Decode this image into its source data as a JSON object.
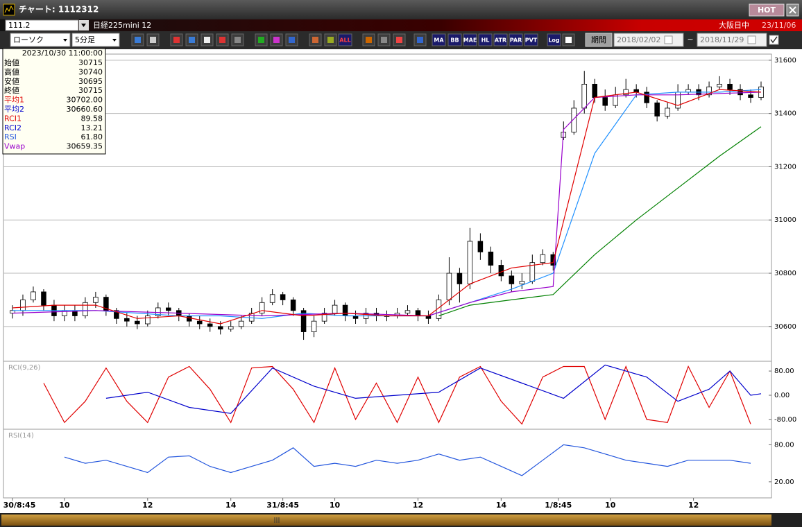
{
  "window": {
    "title": "チャート: 1112312",
    "hot": "HOT",
    "symbol_code": "111.2",
    "symbol_name": "日経225mini 12",
    "session": "大阪日中",
    "date": "23/11/06"
  },
  "toolbar": {
    "chart_type": "ローソク",
    "interval": "5分足",
    "icon_labels": [
      "ALL",
      "MA",
      "BB",
      "MAE",
      "HL",
      "ATR",
      "PAR",
      "PVT",
      "Log"
    ],
    "period_button": "期間",
    "date_from": "2018/02/02",
    "tilde": "~",
    "date_to": "2018/11/29"
  },
  "info_box": {
    "datetime": "2023/10/30 11:00:00",
    "rows": [
      {
        "label": "始値",
        "value": "30715",
        "color": "#000000"
      },
      {
        "label": "高値",
        "value": "30740",
        "color": "#000000"
      },
      {
        "label": "安値",
        "value": "30695",
        "color": "#000000"
      },
      {
        "label": "終値",
        "value": "30715",
        "color": "#000000"
      },
      {
        "label": "平均1",
        "value": "30702.00",
        "color": "#e00000"
      },
      {
        "label": "平均2",
        "value": "30660.60",
        "color": "#0000cc"
      },
      {
        "label": "RCI1",
        "value": "89.58",
        "color": "#e00000"
      },
      {
        "label": "RCI2",
        "value": "13.21",
        "color": "#0000cc"
      },
      {
        "label": "RSI",
        "value": "61.80",
        "color": "#2255dd"
      },
      {
        "label": "Vwap",
        "value": "30659.35",
        "color": "#9900cc"
      }
    ]
  },
  "chart_data": [
    {
      "type": "candlestick",
      "up_color": "#ffffff",
      "down_color": "#000000",
      "wick_color": "#000000",
      "xlim": [
        -0.6,
        73
      ],
      "ylim": [
        30472,
        31623
      ],
      "yticks": [
        30600,
        30800,
        31000,
        31200,
        31400,
        31600
      ],
      "grid": true,
      "open": [
        30650,
        30660,
        30700,
        30730,
        30680,
        30640,
        30660,
        30640,
        30690,
        30710,
        30660,
        30630,
        30620,
        30610,
        30640,
        30670,
        30660,
        30640,
        30620,
        30610,
        30600,
        30590,
        30600,
        30620,
        30650,
        30690,
        30720,
        30700,
        30660,
        30580,
        30620,
        30650,
        30680,
        30640,
        30630,
        30650,
        30640,
        30640,
        30650,
        30660,
        30640,
        30630,
        30700,
        30800,
        30760,
        30920,
        30880,
        30830,
        30790,
        30760,
        30770,
        30840,
        30870,
        31310,
        31330,
        31420,
        31510,
        31460,
        31430,
        31470,
        31490,
        31480,
        31440,
        31390,
        31420,
        31480,
        31490,
        31470,
        31500,
        31510,
        31490,
        31470,
        31460
      ],
      "high": [
        30680,
        30720,
        30750,
        30740,
        30700,
        30680,
        30680,
        30710,
        30730,
        30720,
        30670,
        30650,
        30640,
        30660,
        30690,
        30690,
        30670,
        30650,
        30640,
        30630,
        30620,
        30620,
        30640,
        30670,
        30710,
        30740,
        30730,
        30710,
        30670,
        30640,
        30670,
        30700,
        30690,
        30660,
        30670,
        30670,
        30660,
        30670,
        30680,
        30670,
        30660,
        30720,
        30860,
        30820,
        30970,
        30950,
        30900,
        30850,
        30810,
        30800,
        30870,
        30890,
        30880,
        31370,
        31450,
        31560,
        31530,
        31490,
        31500,
        31530,
        31510,
        31500,
        31450,
        31440,
        31510,
        31510,
        31510,
        31520,
        31540,
        31530,
        31510,
        31490,
        31520
      ],
      "low": [
        30630,
        30640,
        30690,
        30660,
        30620,
        30620,
        30620,
        30630,
        30670,
        30640,
        30610,
        30600,
        30590,
        30600,
        30630,
        30640,
        30620,
        30600,
        30590,
        30580,
        30570,
        30580,
        30590,
        30610,
        30640,
        30680,
        30680,
        30640,
        30550,
        30560,
        30610,
        30640,
        30620,
        30610,
        30610,
        30620,
        30620,
        30630,
        30640,
        30620,
        30610,
        30620,
        30680,
        30690,
        30740,
        30850,
        30800,
        30770,
        30730,
        30740,
        30760,
        30830,
        30810,
        31300,
        31320,
        31400,
        31440,
        31410,
        31420,
        31460,
        31460,
        31420,
        31370,
        31380,
        31410,
        31470,
        31450,
        31460,
        31490,
        31470,
        31450,
        31440,
        31450
      ],
      "close": [
        30660,
        30700,
        30730,
        30680,
        30640,
        30660,
        30640,
        30690,
        30710,
        30660,
        30630,
        30620,
        30610,
        30640,
        30670,
        30660,
        30640,
        30620,
        30610,
        30600,
        30590,
        30600,
        30620,
        30650,
        30690,
        30720,
        30700,
        30660,
        30580,
        30620,
        30650,
        30680,
        30640,
        30630,
        30650,
        30640,
        30640,
        30650,
        30660,
        30640,
        30630,
        30700,
        30800,
        30760,
        30920,
        30880,
        30830,
        30790,
        30760,
        30770,
        30840,
        30870,
        30830,
        31330,
        31420,
        31510,
        31460,
        31430,
        31470,
        31490,
        31480,
        31440,
        31390,
        31420,
        31480,
        31490,
        31470,
        31500,
        31510,
        31490,
        31470,
        31460,
        31500
      ],
      "series": [
        {
          "color": "#008000",
          "x": [
            41,
            44,
            48,
            52,
            56,
            60,
            64,
            68,
            72
          ],
          "values": [
            30640,
            30680,
            30700,
            30720,
            30870,
            31000,
            31120,
            31240,
            31350
          ]
        },
        {
          "color": "#1e90ff",
          "x": [
            0,
            4,
            8,
            12,
            16,
            20,
            24,
            28,
            32,
            36,
            40,
            44,
            48,
            52,
            56,
            60,
            64,
            68,
            72
          ],
          "values": [
            30660,
            30660,
            30660,
            30650,
            30640,
            30640,
            30630,
            30650,
            30640,
            30640,
            30640,
            30690,
            30740,
            30800,
            31250,
            31470,
            31480,
            31480,
            31490
          ]
        },
        {
          "color": "#9900cc",
          "x": [
            0,
            8,
            16,
            24,
            32,
            40,
            44,
            48,
            52,
            53,
            56,
            60,
            64,
            68,
            72
          ],
          "values": [
            30650,
            30660,
            30650,
            30640,
            30650,
            30640,
            30690,
            30730,
            30750,
            31340,
            31460,
            31470,
            31470,
            31475,
            31480
          ]
        },
        {
          "color": "#e00000",
          "x": [
            0,
            4,
            8,
            12,
            16,
            20,
            24,
            28,
            32,
            36,
            40,
            44,
            48,
            52,
            56,
            60,
            64,
            68,
            72
          ],
          "values": [
            30670,
            30680,
            30680,
            30630,
            30640,
            30610,
            30660,
            30640,
            30650,
            30640,
            30640,
            30760,
            30820,
            30840,
            31460,
            31480,
            31430,
            31490,
            31480
          ]
        }
      ]
    },
    {
      "type": "line",
      "title": "RCI(9,26)",
      "xlim": [
        -0.6,
        73
      ],
      "ylim": [
        -110,
        110
      ],
      "yticks": [
        {
          "value": 80,
          "label": "80.00"
        },
        {
          "value": 0,
          "label": "0.00"
        },
        {
          "value": -80,
          "label": "-80.00"
        }
      ],
      "grid": false,
      "series": [
        {
          "color": "#e00000",
          "x": [
            3,
            5,
            7,
            9,
            11,
            13,
            15,
            17,
            19,
            21,
            23,
            25,
            27,
            29,
            31,
            33,
            35,
            37,
            39,
            41,
            43,
            45,
            47,
            49,
            51,
            53,
            55,
            57,
            59,
            61,
            63,
            65,
            67,
            69,
            71
          ],
          "values": [
            40,
            -90,
            -20,
            90,
            -20,
            -90,
            60,
            95,
            20,
            -90,
            90,
            95,
            20,
            -90,
            90,
            -80,
            40,
            -90,
            60,
            -90,
            60,
            95,
            -20,
            -95,
            60,
            95,
            95,
            -80,
            95,
            -80,
            -90,
            95,
            -40,
            80,
            -95
          ]
        },
        {
          "color": "#0000cc",
          "x": [
            9,
            13,
            17,
            21,
            25,
            29,
            33,
            37,
            41,
            45,
            49,
            53,
            57,
            61,
            64,
            67,
            69,
            71,
            72
          ],
          "values": [
            -10,
            10,
            -40,
            -60,
            90,
            30,
            -10,
            0,
            10,
            90,
            40,
            -10,
            100,
            60,
            -20,
            20,
            80,
            0,
            5
          ]
        }
      ]
    },
    {
      "type": "line",
      "title": "RSI(14)",
      "xlim": [
        -0.6,
        73
      ],
      "ylim": [
        -6,
        104
      ],
      "yticks": [
        {
          "value": 80,
          "label": "80.00"
        },
        {
          "value": 20,
          "label": "20.00"
        }
      ],
      "grid": false,
      "xticks": [
        {
          "value": 0,
          "label": "30/8:45"
        },
        {
          "value": 5,
          "label": "10"
        },
        {
          "value": 13,
          "label": "12"
        },
        {
          "value": 21,
          "label": "14"
        },
        {
          "value": 26,
          "label": "31/8:45"
        },
        {
          "value": 31,
          "label": "10"
        },
        {
          "value": 39,
          "label": "12"
        },
        {
          "value": 47,
          "label": "14"
        },
        {
          "value": 52.5,
          "label": "1/8:45"
        },
        {
          "value": 57.5,
          "label": "10"
        },
        {
          "value": 65.5,
          "label": "12"
        }
      ],
      "series": [
        {
          "color": "#2255dd",
          "x": [
            5,
            7,
            9,
            11,
            13,
            15,
            17,
            19,
            21,
            23,
            25,
            27,
            29,
            31,
            33,
            35,
            37,
            39,
            41,
            43,
            45,
            47,
            49,
            51,
            53,
            55,
            57,
            59,
            61,
            63,
            65,
            67,
            69,
            71
          ],
          "values": [
            60,
            50,
            55,
            45,
            35,
            60,
            62,
            45,
            35,
            45,
            55,
            75,
            45,
            50,
            45,
            55,
            50,
            55,
            65,
            55,
            60,
            45,
            30,
            55,
            80,
            75,
            65,
            55,
            50,
            45,
            55,
            55,
            55,
            50
          ]
        }
      ]
    }
  ]
}
